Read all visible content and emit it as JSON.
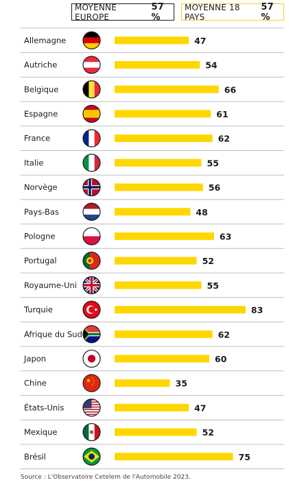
{
  "legend": {
    "europe_label": "MOYENNE EUROPE",
    "europe_value": "57 %",
    "all_label": "MOYENNE 18 PAYS",
    "all_value": "57 %"
  },
  "chart_data": {
    "type": "bar",
    "orientation": "horizontal",
    "categories": [
      "Allemagne",
      "Autriche",
      "Belgique",
      "Espagne",
      "France",
      "Italie",
      "Norvège",
      "Pays-Bas",
      "Pologne",
      "Portugal",
      "Royaume-Uni",
      "Turquie",
      "Afrique du Sud",
      "Japon",
      "Chine",
      "États-Unis",
      "Mexique",
      "Brésil"
    ],
    "flags": [
      "flag-germany-icon",
      "flag-austria-icon",
      "flag-belgium-icon",
      "flag-spain-icon",
      "flag-france-icon",
      "flag-italy-icon",
      "flag-norway-icon",
      "flag-netherlands-icon",
      "flag-poland-icon",
      "flag-portugal-icon",
      "flag-uk-icon",
      "flag-turkey-icon",
      "flag-south-africa-icon",
      "flag-japan-icon",
      "flag-china-icon",
      "flag-usa-icon",
      "flag-mexico-icon",
      "flag-brazil-icon"
    ],
    "values": [
      47,
      54,
      66,
      61,
      62,
      55,
      56,
      48,
      63,
      52,
      55,
      83,
      62,
      60,
      35,
      47,
      52,
      75
    ],
    "bar_color": "#ffd700",
    "xlim": [
      0,
      100
    ],
    "grid": false
  },
  "source": "Source : L'Observatoire Cetelem de l'Automobile 2023."
}
